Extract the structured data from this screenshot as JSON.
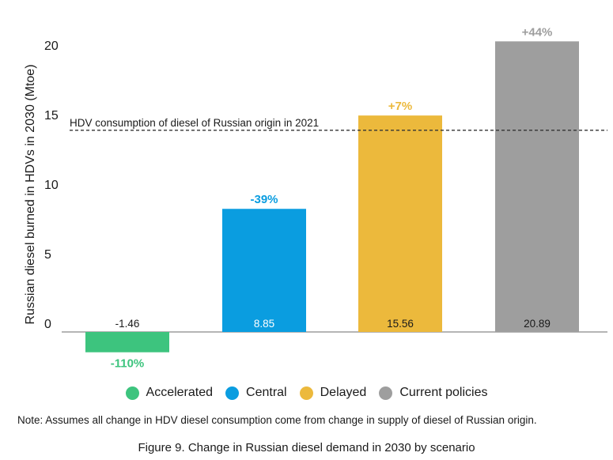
{
  "chart_data": {
    "type": "bar",
    "categories": [
      "Accelerated",
      "Central",
      "Delayed",
      "Current policies"
    ],
    "values": [
      -1.46,
      8.85,
      15.56,
      20.89
    ],
    "value_labels": [
      "-1.46",
      "8.85",
      "15.56",
      "20.89"
    ],
    "percent_labels": [
      "-110%",
      "-39%",
      "+7%",
      "+44%"
    ],
    "colors": [
      "#3dc47e",
      "#0a9de0",
      "#ecb93c",
      "#9e9e9e"
    ],
    "value_label_colors": [
      "#1a1a1a",
      "#ffffff",
      "#1a1a1a",
      "#1a1a1a"
    ],
    "ylabel": "Russian diesel burned in HDVs in 2030 (Mtoe)",
    "yticks": [
      0,
      5,
      10,
      15,
      20
    ],
    "ylim": [
      -2.5,
      21.5
    ],
    "reference_line": {
      "value": 14.5,
      "label": "HDV consumption of diesel of Russian origin in 2021",
      "style": "dashed"
    },
    "grid": false,
    "legend_placement": "bottom"
  },
  "legend": {
    "items": [
      {
        "label": "Accelerated",
        "color": "#3dc47e"
      },
      {
        "label": "Central",
        "color": "#0a9de0"
      },
      {
        "label": "Delayed",
        "color": "#ecb93c"
      },
      {
        "label": "Current policies",
        "color": "#9e9e9e"
      }
    ]
  },
  "note": "Note: Assumes all change in HDV diesel consumption come from change in supply of diesel of Russian origin.",
  "caption": "Figure 9. Change in Russian diesel demand in 2030 by scenario"
}
